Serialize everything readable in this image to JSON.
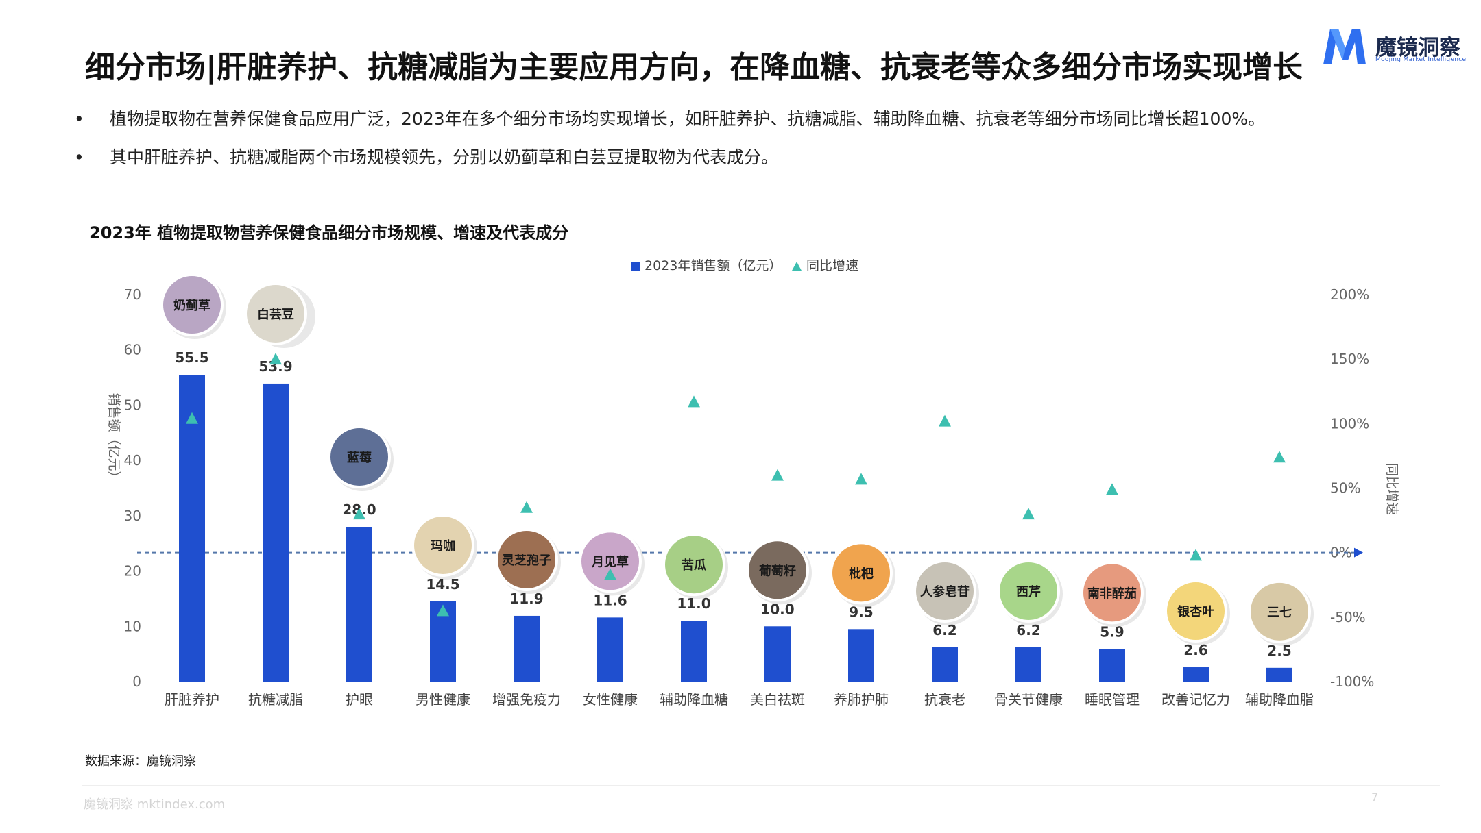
{
  "header": {
    "title": "细分市场|肝脏养护、抗糖减脂为主要应用方向，在降血糖、抗衰老等众多细分市场实现增长",
    "logo_text": "魔镜洞察",
    "logo_subtext": "Moojing Market Intelligence"
  },
  "bullets": [
    "植物提取物在营养保健食品应用广泛，2023年在多个细分市场均实现增长，如肝脏养护、抗糖减脂、辅助降血糖、抗衰老等细分市场同比增长超100%。",
    "其中肝脏养护、抗糖减脂两个市场规模领先，分别以奶蓟草和白芸豆提取物为代表成分。"
  ],
  "footer": {
    "source": "数据来源：魔镜洞察",
    "url": "魔镜洞察 mktindex.com",
    "page": "7"
  },
  "colors": {
    "bar": "#1f4fcf",
    "growth_marker": "#3dbfb0",
    "zero_line": "#5577aa",
    "axis_text": "#666666"
  },
  "chart_data": {
    "type": "bar",
    "title": "2023年 植物提取物营养保健食品细分市场规模、增速及代表成分",
    "legend_position": "top-center",
    "categories": [
      "肝脏养护",
      "抗糖减脂",
      "护眼",
      "男性健康",
      "增强免疫力",
      "女性健康",
      "辅助降血糖",
      "美白祛斑",
      "养肺护肺",
      "抗衰老",
      "骨关节健康",
      "睡眠管理",
      "改善记忆力",
      "辅助降血脂"
    ],
    "ingredients": [
      "奶蓟草",
      "白芸豆",
      "蓝莓",
      "玛咖",
      "灵芝孢子",
      "月见草",
      "苦瓜",
      "葡萄籽",
      "枇杷",
      "人参皂苷",
      "西芹",
      "南非醉茄",
      "银杏叶",
      "三七"
    ],
    "series": [
      {
        "name": "2023年销售额（亿元）",
        "type": "bar",
        "axis": "left",
        "values": [
          55.5,
          53.9,
          28.0,
          14.5,
          11.9,
          11.6,
          11.0,
          10.0,
          9.5,
          6.2,
          6.2,
          5.9,
          2.6,
          2.5
        ],
        "labels": [
          "55.5",
          "53.9",
          "28.0",
          "14.5",
          "11.9",
          "11.6",
          "11.0",
          "10.0",
          "9.5",
          "6.2",
          "6.2",
          "5.9",
          "2.6",
          "2.5"
        ]
      },
      {
        "name": "同比增速",
        "type": "scatter",
        "axis": "right",
        "values": [
          104,
          150,
          30,
          -45,
          35,
          -17,
          117,
          60,
          57,
          102,
          30,
          49,
          -2,
          74
        ]
      }
    ],
    "ylabel": "销售额（亿元）",
    "ylim": [
      0,
      70
    ],
    "yticks": [
      "0",
      "10",
      "20",
      "30",
      "40",
      "50",
      "60",
      "70"
    ],
    "y2label": "同比增速",
    "y2lim": [
      -100,
      200
    ],
    "y2ticks": [
      "-100%",
      "-50%",
      "0%",
      "50%",
      "100%",
      "150%",
      "200%"
    ],
    "grid": false,
    "reference_line": "0%"
  }
}
